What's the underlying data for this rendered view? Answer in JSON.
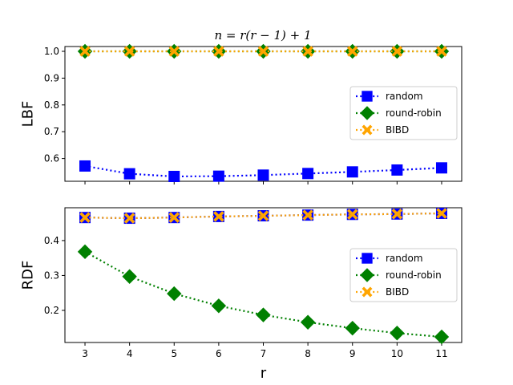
{
  "figure": {
    "title": "n = r(r − 1) + 1"
  },
  "chart_data": [
    {
      "type": "line",
      "title": "n = r(r − 1) + 1",
      "xlabel": "",
      "ylabel": "LBF",
      "x": [
        3,
        4,
        5,
        6,
        7,
        8,
        9,
        10,
        11
      ],
      "xlim": [
        2.55,
        11.45
      ],
      "ylim": [
        0.515,
        1.018
      ],
      "yticks": [
        0.6,
        0.7,
        0.8,
        0.9,
        1.0
      ],
      "ytick_labels": [
        "0.6",
        "0.7",
        "0.8",
        "0.9",
        "1.0"
      ],
      "show_xtick_labels": false,
      "legend_position": "center-right",
      "grid": false,
      "series": [
        {
          "name": "random",
          "color": "#0000ff",
          "marker": "square",
          "values": [
            0.572,
            0.543,
            0.533,
            0.534,
            0.538,
            0.544,
            0.55,
            0.557,
            0.565
          ]
        },
        {
          "name": "round-robin",
          "color": "#008000",
          "marker": "diamond",
          "values": [
            1.0,
            1.0,
            1.0,
            1.0,
            1.0,
            1.0,
            1.0,
            1.0,
            1.0
          ]
        },
        {
          "name": "BIBD",
          "color": "#ffa500",
          "marker": "x",
          "values": [
            1.0,
            1.0,
            1.0,
            1.0,
            1.0,
            1.0,
            1.0,
            1.0,
            1.0
          ]
        }
      ]
    },
    {
      "type": "line",
      "title": "",
      "xlabel": "r",
      "ylabel": "RDF",
      "x": [
        3,
        4,
        5,
        6,
        7,
        8,
        9,
        10,
        11
      ],
      "xlim": [
        2.55,
        11.45
      ],
      "ylim": [
        0.108,
        0.494
      ],
      "yticks": [
        0.2,
        0.3,
        0.4
      ],
      "ytick_labels": [
        "0.2",
        "0.3",
        "0.4"
      ],
      "xticks": [
        3,
        4,
        5,
        6,
        7,
        8,
        9,
        10,
        11
      ],
      "xtick_labels": [
        "3",
        "4",
        "5",
        "6",
        "7",
        "8",
        "9",
        "10",
        "11"
      ],
      "show_xtick_labels": true,
      "legend_position": "center-right",
      "grid": false,
      "series": [
        {
          "name": "random",
          "color": "#0000ff",
          "marker": "square",
          "values": [
            0.466,
            0.464,
            0.466,
            0.469,
            0.471,
            0.473,
            0.475,
            0.476,
            0.478
          ]
        },
        {
          "name": "round-robin",
          "color": "#008000",
          "marker": "diamond",
          "values": [
            0.368,
            0.297,
            0.248,
            0.213,
            0.187,
            0.166,
            0.149,
            0.135,
            0.124
          ]
        },
        {
          "name": "BIBD",
          "color": "#ffa500",
          "marker": "x",
          "values": [
            0.466,
            0.464,
            0.466,
            0.469,
            0.471,
            0.473,
            0.475,
            0.476,
            0.478
          ]
        }
      ]
    }
  ]
}
